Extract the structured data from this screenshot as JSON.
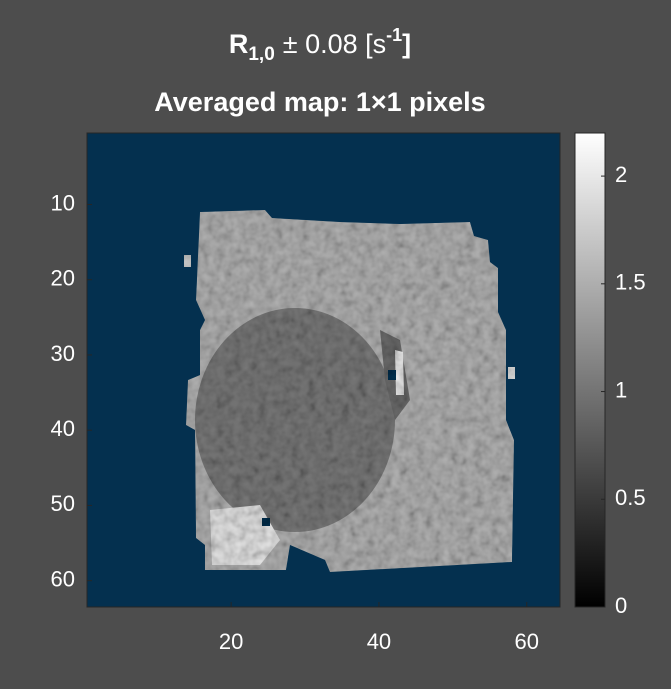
{
  "chart_data": {
    "type": "image",
    "title": {
      "symbol": "R",
      "subscript": "1,0",
      "text": "± 0.08 [s",
      "superscript": "-1",
      "close": "]"
    },
    "subtitle": "Averaged map: 1×1 pixels",
    "xlim": [
      0.5,
      64.5
    ],
    "xticks": [
      20,
      40,
      60
    ],
    "ylim": [
      0.5,
      63.5
    ],
    "yticks": [
      10,
      20,
      30,
      40,
      50,
      60
    ],
    "clim": [
      0,
      2.2
    ],
    "cticks": [
      0,
      0.5,
      1,
      1.5,
      2
    ],
    "background_color": "#04304f"
  }
}
